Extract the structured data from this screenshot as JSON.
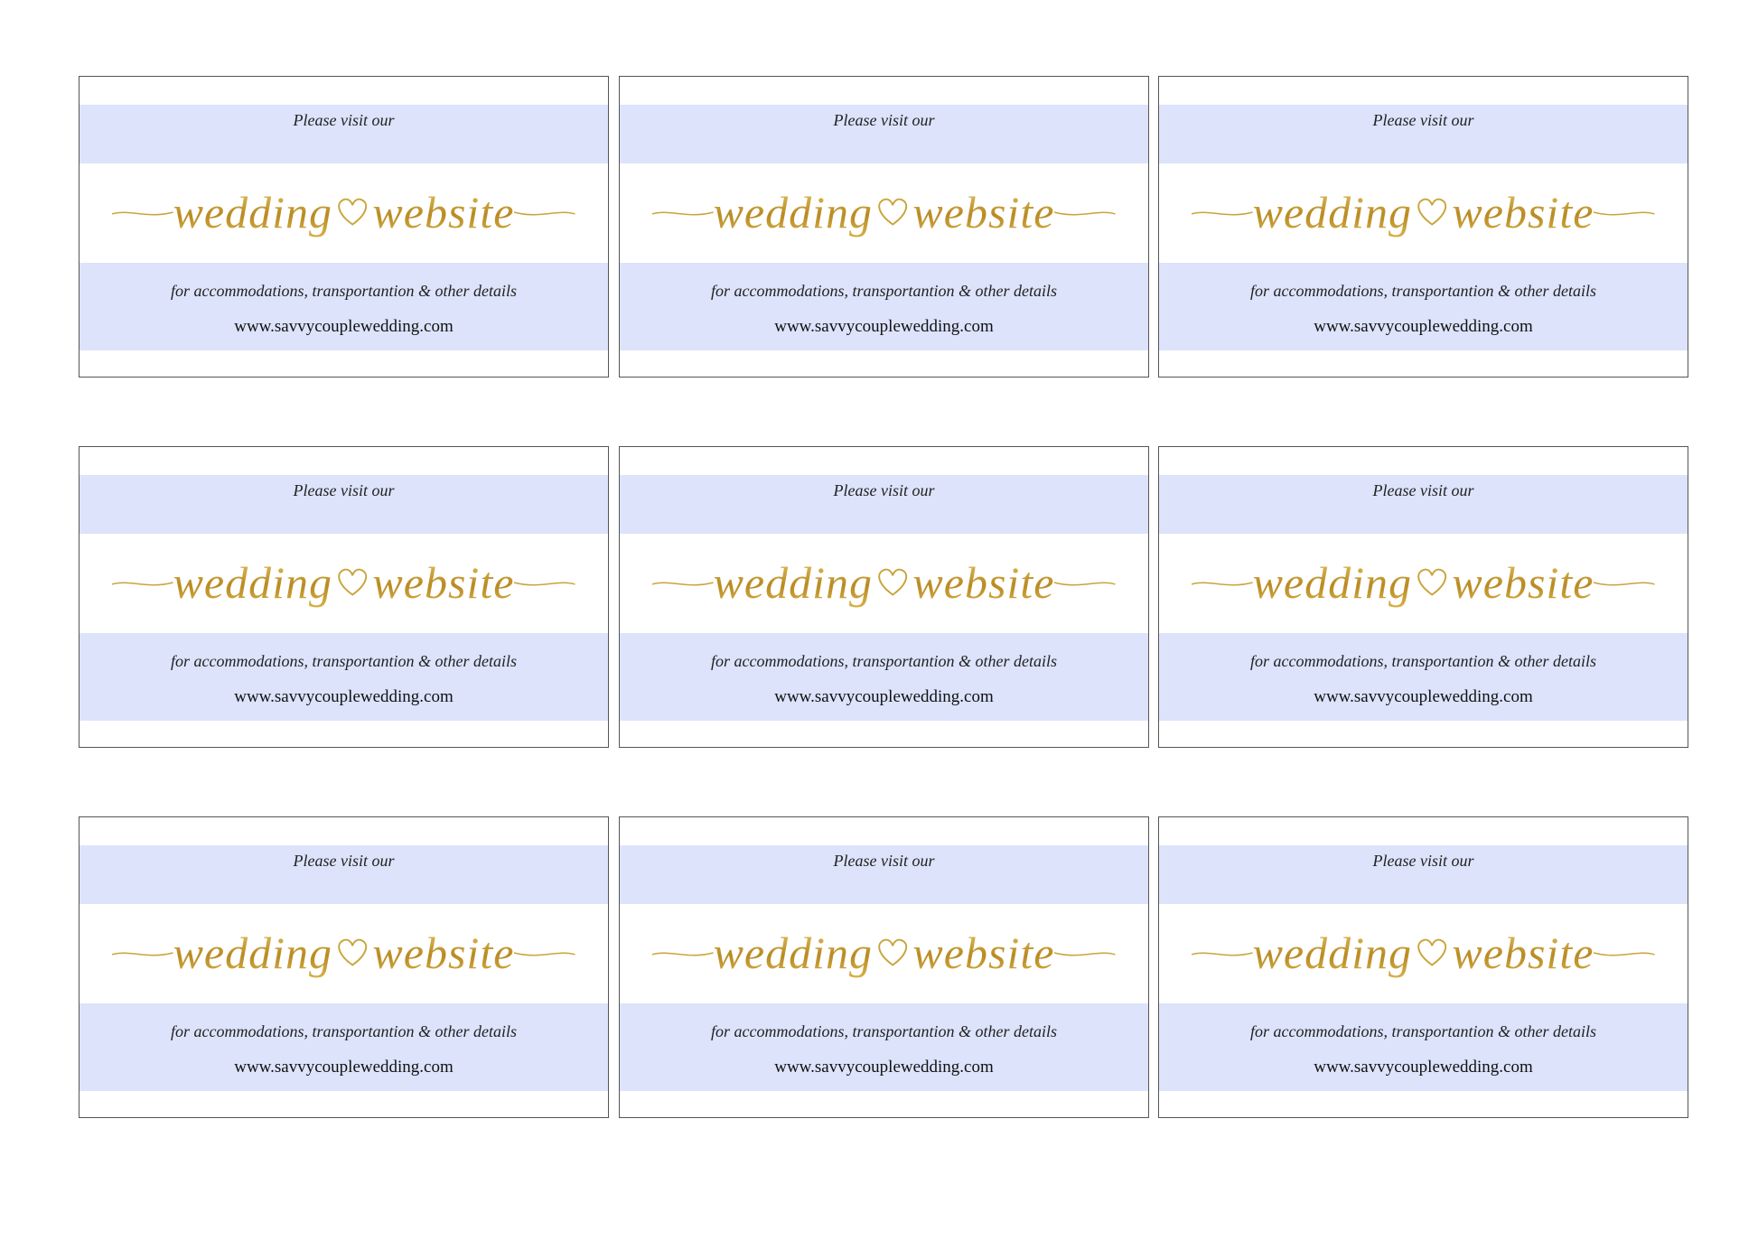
{
  "cards": [
    {
      "intro": "Please visit our",
      "script_left": "wedding",
      "script_right": "website",
      "details": "for accommodations, transportantion & other details",
      "url": "www.savvycouplewedding.com"
    },
    {
      "intro": "Please visit our",
      "script_left": "wedding",
      "script_right": "website",
      "details": "for accommodations, transportantion & other details",
      "url": "www.savvycouplewedding.com"
    },
    {
      "intro": "Please visit our",
      "script_left": "wedding",
      "script_right": "website",
      "details": "for accommodations, transportantion & other details",
      "url": "www.savvycouplewedding.com"
    },
    {
      "intro": "Please visit our",
      "script_left": "wedding",
      "script_right": "website",
      "details": "for accommodations, transportantion & other details",
      "url": "www.savvycouplewedding.com"
    },
    {
      "intro": "Please visit our",
      "script_left": "wedding",
      "script_right": "website",
      "details": "for accommodations, transportantion & other details",
      "url": "www.savvycouplewedding.com"
    },
    {
      "intro": "Please visit our",
      "script_left": "wedding",
      "script_right": "website",
      "details": "for accommodations, transportantion & other details",
      "url": "www.savvycouplewedding.com"
    },
    {
      "intro": "Please visit our",
      "script_left": "wedding",
      "script_right": "website",
      "details": "for accommodations, transportantion & other details",
      "url": "www.savvycouplewedding.com"
    },
    {
      "intro": "Please visit our",
      "script_left": "wedding",
      "script_right": "website",
      "details": "for accommodations, transportantion & other details",
      "url": "www.savvycouplewedding.com"
    },
    {
      "intro": "Please visit our",
      "script_left": "wedding",
      "script_right": "website",
      "details": "for accommodations, transportantion & other details",
      "url": "www.savvycouplewedding.com"
    }
  ]
}
